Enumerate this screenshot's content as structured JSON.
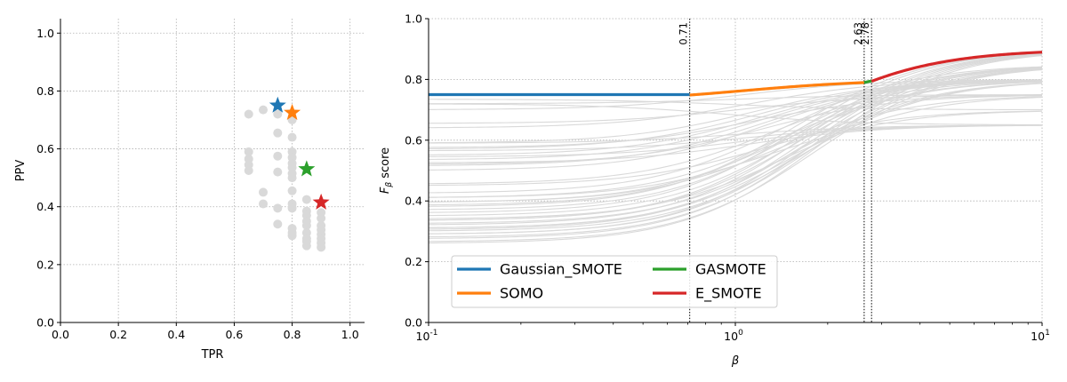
{
  "chart_data": [
    {
      "type": "scatter",
      "xlabel": "TPR",
      "ylabel": "PPV",
      "xlim": [
        0.0,
        1.05
      ],
      "ylim": [
        0.0,
        1.05
      ],
      "xticks": [
        "0.0",
        "0.2",
        "0.4",
        "0.6",
        "0.8",
        "1.0"
      ],
      "yticks": [
        "0.0",
        "0.2",
        "0.4",
        "0.6",
        "0.8",
        "1.0"
      ],
      "grid": true,
      "background_points": [
        [
          0.65,
          0.72
        ],
        [
          0.7,
          0.735
        ],
        [
          0.75,
          0.72
        ],
        [
          0.8,
          0.7
        ],
        [
          0.75,
          0.655
        ],
        [
          0.8,
          0.64
        ],
        [
          0.65,
          0.59
        ],
        [
          0.75,
          0.575
        ],
        [
          0.8,
          0.59
        ],
        [
          0.8,
          0.57
        ],
        [
          0.65,
          0.565
        ],
        [
          0.65,
          0.545
        ],
        [
          0.8,
          0.55
        ],
        [
          0.8,
          0.535
        ],
        [
          0.65,
          0.525
        ],
        [
          0.75,
          0.52
        ],
        [
          0.8,
          0.515
        ],
        [
          0.8,
          0.5
        ],
        [
          0.8,
          0.455
        ],
        [
          0.7,
          0.45
        ],
        [
          0.85,
          0.425
        ],
        [
          0.7,
          0.41
        ],
        [
          0.8,
          0.41
        ],
        [
          0.8,
          0.395
        ],
        [
          0.75,
          0.395
        ],
        [
          0.85,
          0.385
        ],
        [
          0.9,
          0.38
        ],
        [
          0.85,
          0.37
        ],
        [
          0.9,
          0.36
        ],
        [
          0.85,
          0.35
        ],
        [
          0.75,
          0.34
        ],
        [
          0.85,
          0.335
        ],
        [
          0.9,
          0.335
        ],
        [
          0.8,
          0.325
        ],
        [
          0.9,
          0.32
        ],
        [
          0.8,
          0.31
        ],
        [
          0.85,
          0.31
        ],
        [
          0.9,
          0.305
        ],
        [
          0.8,
          0.3
        ],
        [
          0.85,
          0.29
        ],
        [
          0.9,
          0.29
        ],
        [
          0.85,
          0.28
        ],
        [
          0.9,
          0.275
        ],
        [
          0.85,
          0.265
        ],
        [
          0.9,
          0.26
        ]
      ],
      "highlighted": [
        {
          "tpr": 0.75,
          "ppv": 0.75,
          "color": "#1f77b4"
        },
        {
          "tpr": 0.8,
          "ppv": 0.725,
          "color": "#ff7f0e"
        },
        {
          "tpr": 0.85,
          "ppv": 0.53,
          "color": "#2ca02c"
        },
        {
          "tpr": 0.9,
          "ppv": 0.415,
          "color": "#d62728"
        }
      ],
      "background_color": "#d9d9d9"
    },
    {
      "type": "line",
      "xlabel": "β",
      "ylabel": "F_β score",
      "xscale": "log",
      "xlim": [
        0.1,
        10
      ],
      "ylim": [
        0.0,
        1.0
      ],
      "xticks": [
        "10^-1",
        "10^0",
        "10^1"
      ],
      "yticks": [
        "0.0",
        "0.2",
        "0.4",
        "0.6",
        "0.8",
        "1.0"
      ],
      "grid": true,
      "legend_placement": "lower-left",
      "background_color": "#d9d9d9",
      "vlines": [
        {
          "x": 0.71,
          "label": "0.71"
        },
        {
          "x": 2.63,
          "label": "2.63"
        },
        {
          "x": 2.78,
          "label": "2.78"
        }
      ],
      "series": [
        {
          "name": "Gaussian_SMOTE",
          "color": "#1f77b4",
          "tpr": 0.75,
          "ppv": 0.75,
          "beta_from": 0.1,
          "beta_to": 0.71
        },
        {
          "name": "SOMO",
          "color": "#ff7f0e",
          "tpr": 0.8,
          "ppv": 0.725,
          "beta_from": 0.71,
          "beta_to": 2.63
        },
        {
          "name": "GASMOTE",
          "color": "#2ca02c",
          "tpr": 0.85,
          "ppv": 0.53,
          "beta_from": 2.63,
          "beta_to": 2.78
        },
        {
          "name": "E_SMOTE",
          "color": "#d62728",
          "tpr": 0.9,
          "ppv": 0.415,
          "beta_from": 2.78,
          "beta_to": 10
        }
      ]
    }
  ]
}
